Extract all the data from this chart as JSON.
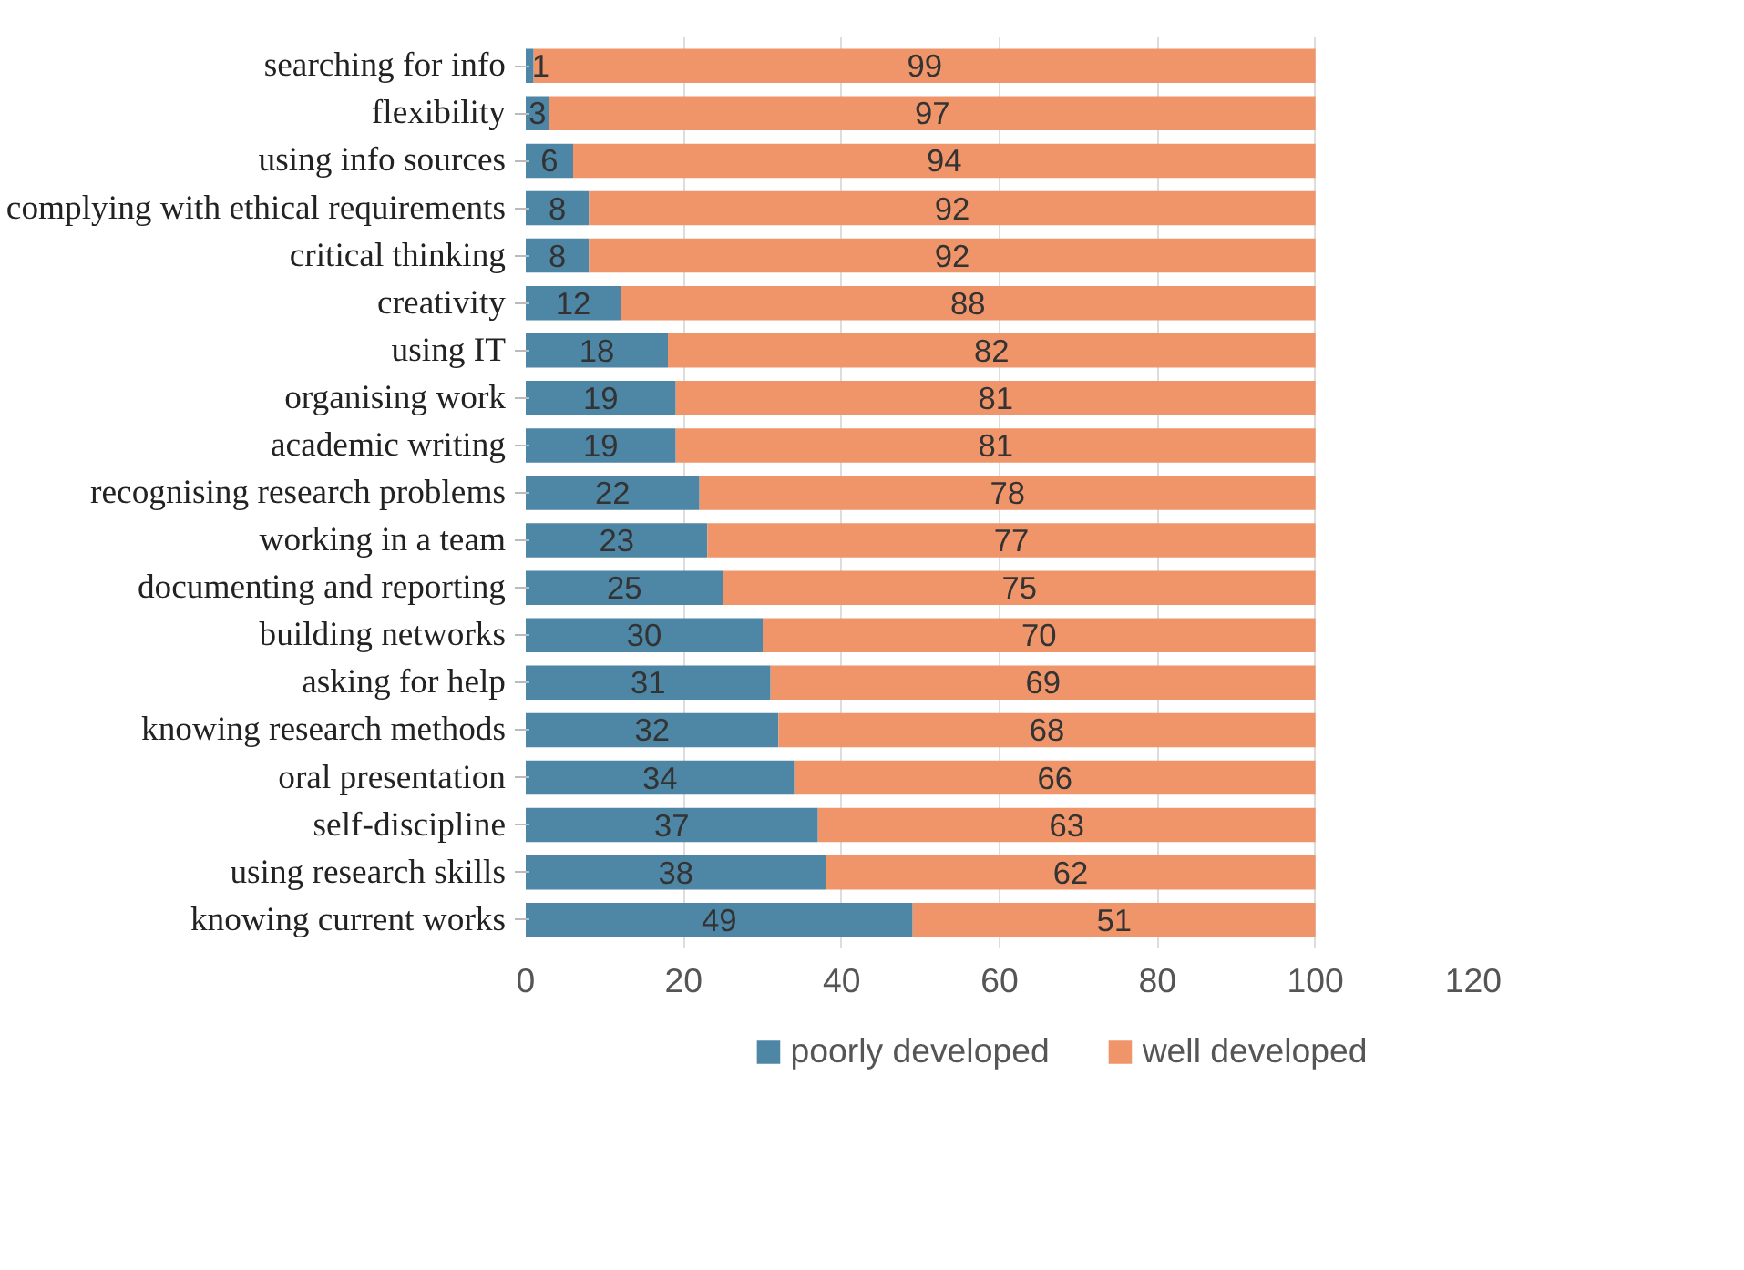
{
  "chart_data": {
    "type": "bar",
    "orientation": "horizontal",
    "stacked": true,
    "categories": [
      "searching for info",
      "flexibility",
      "using info sources",
      "complying with ethical requirements",
      "critical thinking",
      "creativity",
      "using IT",
      "organising work",
      "academic writing",
      "recognising research problems",
      "working in a team",
      "documenting and reporting",
      "building networks",
      "asking for help",
      "knowing research methods",
      "oral presentation",
      "self-discipline",
      "using research skills",
      "knowing current works"
    ],
    "series": [
      {
        "name": "poorly developed",
        "color": "#4e86a6",
        "values": [
          1,
          3,
          6,
          8,
          8,
          12,
          18,
          19,
          19,
          22,
          23,
          25,
          30,
          31,
          32,
          34,
          37,
          38,
          49
        ]
      },
      {
        "name": "well developed",
        "color": "#f0956a",
        "values": [
          99,
          97,
          94,
          92,
          92,
          88,
          82,
          81,
          81,
          78,
          77,
          75,
          70,
          69,
          68,
          66,
          63,
          62,
          51
        ]
      }
    ],
    "xlim": [
      0,
      120
    ],
    "xticks": [
      0,
      20,
      40,
      60,
      80,
      100,
      120
    ],
    "grid": "x",
    "legend": "bottom",
    "data_labels": true
  }
}
